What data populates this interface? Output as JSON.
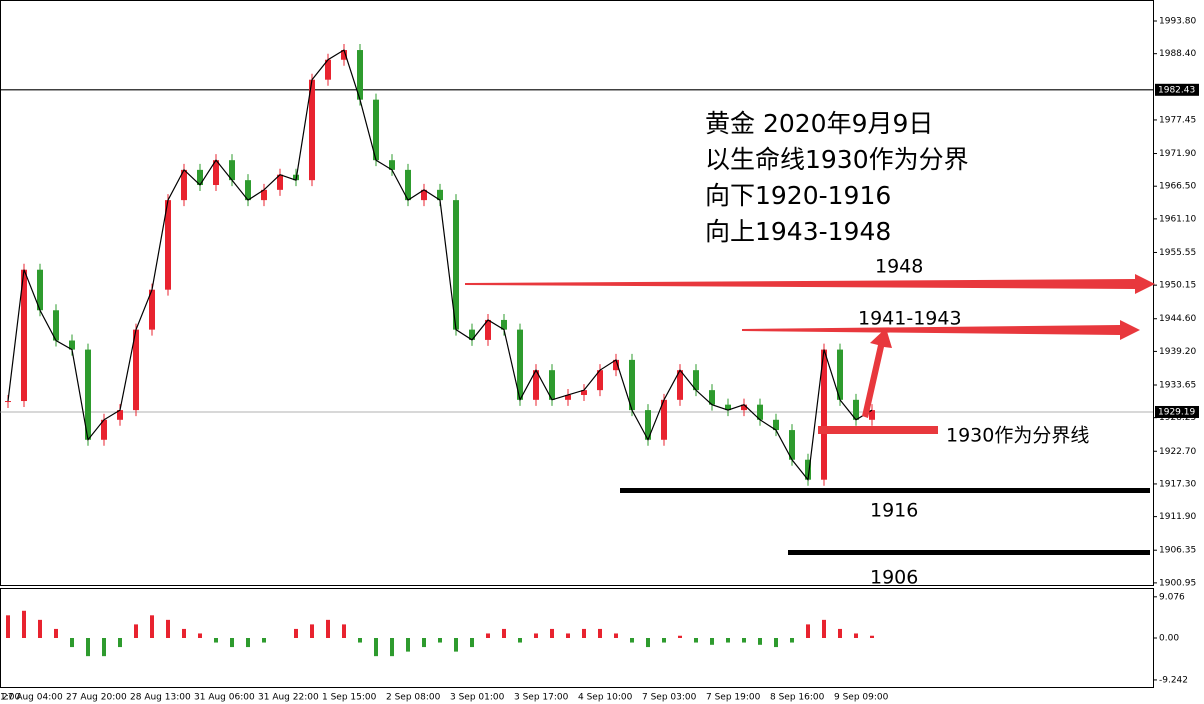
{
  "chart_data": {
    "type": "candlestick",
    "values": [
      1931,
      1952.7,
      1946,
      1941,
      1939.5,
      1924.6,
      1927.9,
      1929.5,
      1942.8,
      1949.4,
      1964.2,
      1969.2,
      1966.7,
      1970.8,
      1967.5,
      1964.2,
      1965.9,
      1968.4,
      1967.5,
      1984.1,
      1987.4,
      1989,
      1980.8,
      1970.8,
      1969.2,
      1964.2,
      1965.9,
      1964.2,
      1942.8,
      1941.1,
      1944.4,
      1942.8,
      1931.2,
      1936.1,
      1931.2,
      1932,
      1932.8,
      1936.1,
      1937.8,
      1929.5,
      1924.6,
      1931.2,
      1936.1,
      1932.8,
      1930.4,
      1929.5,
      1930.4,
      1927.9,
      1926.2,
      1921.3,
      1918,
      1939.5,
      1931.2,
      1927.9,
      1929.5
    ],
    "up_color": "#e8232f",
    "down_color": "#2e9b2e",
    "ylim": [
      1900.6,
      1997.27
    ],
    "yticks": [
      {
        "value": 1993.8,
        "label": "1993.80"
      },
      {
        "value": 1988.4,
        "label": "1988.40"
      },
      {
        "value": 1977.45,
        "label": "1977.45"
      },
      {
        "value": 1971.9,
        "label": "1971.90"
      },
      {
        "value": 1966.5,
        "label": "1966.50"
      },
      {
        "value": 1961.1,
        "label": "1961.10"
      },
      {
        "value": 1955.55,
        "label": "1955.55"
      },
      {
        "value": 1950.15,
        "label": "1950.15"
      },
      {
        "value": 1944.6,
        "label": "1944.60"
      },
      {
        "value": 1939.2,
        "label": "1939.20"
      },
      {
        "value": 1933.65,
        "label": "1933.65"
      },
      {
        "value": 1928.25,
        "label": "1928.25"
      },
      {
        "value": 1922.7,
        "label": "1922.70"
      },
      {
        "value": 1917.3,
        "label": "1917.30"
      },
      {
        "value": 1911.9,
        "label": "1911.90"
      },
      {
        "value": 1906.35,
        "label": "1906.35"
      },
      {
        "value": 1900.95,
        "label": "1900.95"
      }
    ],
    "price_tags": [
      1982.43,
      1929.19
    ],
    "xticks": [
      "1:00",
      "27 Aug 04:00",
      "27 Aug 20:00",
      "28 Aug 13:00",
      "31 Aug 06:00",
      "31 Aug 22:00",
      "1 Sep 15:00",
      "2 Sep 08:00",
      "3 Sep 01:00",
      "3 Sep 17:00",
      "4 Sep 10:00",
      "7 Sep 03:00",
      "7 Sep 19:00",
      "8 Sep 16:00",
      "9 Sep 09:00"
    ],
    "macd": {
      "values": [
        5,
        6,
        4,
        2,
        -2,
        -4,
        -4,
        -2,
        3,
        5,
        4,
        2,
        1,
        -1,
        -2,
        -2,
        -1,
        0,
        2,
        3,
        4,
        3,
        -1,
        -4,
        -4,
        -3,
        -2,
        -1,
        -3,
        -2,
        1,
        2,
        -1,
        1,
        2,
        1,
        2,
        2,
        1,
        -1,
        -2,
        -1,
        0.5,
        -1,
        -1.5,
        -1,
        -1,
        -1.5,
        -2,
        -1,
        3,
        4,
        2,
        1,
        0.5
      ],
      "ylim": [
        -10.8,
        10.8
      ],
      "yticks": [
        9.076,
        {
          "value": 0,
          "label": "0.00"
        },
        -9.242
      ]
    },
    "annotations": {
      "headline": [
        "黄金 2020年9月9日",
        "以生命线1930作为分界",
        "向下1920-1916",
        "向上1943-1948"
      ],
      "levels": [
        "1948",
        "1941-1943",
        "1930作为分界线",
        "1916",
        "1906"
      ]
    }
  }
}
